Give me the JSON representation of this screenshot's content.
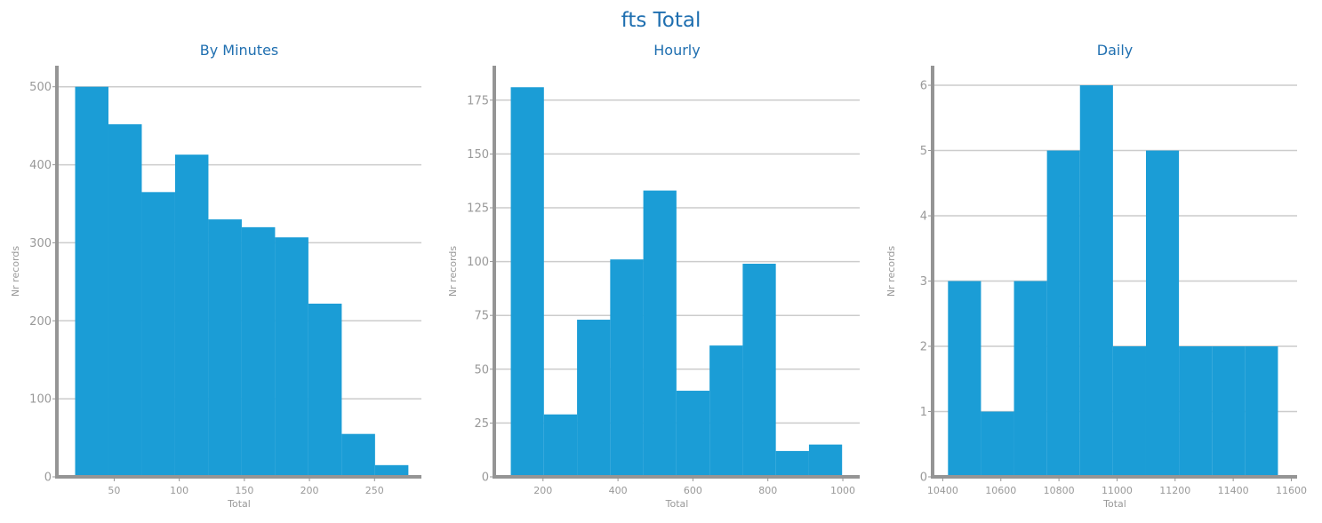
{
  "figure": {
    "suptitle": "fts Total"
  },
  "colors": {
    "bar": "#1b9dd6",
    "title": "#1f6fb0",
    "axis": "#959595",
    "grid": "#cccccc",
    "tick_text": "#999999"
  },
  "chart_data": [
    {
      "type": "bar",
      "title": "By Minutes",
      "xlabel": "Total",
      "ylabel": "Nr records",
      "xlim": [
        6,
        286
      ],
      "ylim": [
        0,
        527
      ],
      "xticks": [
        50,
        100,
        150,
        200,
        250
      ],
      "yticks": [
        0,
        100,
        200,
        300,
        400,
        500
      ],
      "grid": "horizontal",
      "bins": [
        {
          "x0": 20,
          "x1": 45.6,
          "value": 500
        },
        {
          "x0": 45.6,
          "x1": 71.2,
          "value": 452
        },
        {
          "x0": 71.2,
          "x1": 96.8,
          "value": 365
        },
        {
          "x0": 96.8,
          "x1": 122.4,
          "value": 413
        },
        {
          "x0": 122.4,
          "x1": 148.0,
          "value": 330
        },
        {
          "x0": 148.0,
          "x1": 173.6,
          "value": 320
        },
        {
          "x0": 173.6,
          "x1": 199.2,
          "value": 307
        },
        {
          "x0": 199.2,
          "x1": 224.8,
          "value": 222
        },
        {
          "x0": 224.8,
          "x1": 250.4,
          "value": 55
        },
        {
          "x0": 250.4,
          "x1": 276.0,
          "value": 15
        }
      ]
    },
    {
      "type": "bar",
      "title": "Hourly",
      "xlabel": "Total",
      "ylabel": "Nr records",
      "xlim": [
        70,
        1045
      ],
      "ylim": [
        0,
        191
      ],
      "xticks": [
        200,
        400,
        600,
        800,
        1000
      ],
      "yticks": [
        0,
        25,
        50,
        75,
        100,
        125,
        150,
        175
      ],
      "grid": "horizontal",
      "bins": [
        {
          "x0": 114,
          "x1": 202.4,
          "value": 181
        },
        {
          "x0": 202.4,
          "x1": 290.8,
          "value": 29
        },
        {
          "x0": 290.8,
          "x1": 379.2,
          "value": 73
        },
        {
          "x0": 379.2,
          "x1": 467.6,
          "value": 101
        },
        {
          "x0": 467.6,
          "x1": 556.0,
          "value": 133
        },
        {
          "x0": 556.0,
          "x1": 644.4,
          "value": 40
        },
        {
          "x0": 644.4,
          "x1": 732.8,
          "value": 61
        },
        {
          "x0": 732.8,
          "x1": 821.2,
          "value": 99
        },
        {
          "x0": 821.2,
          "x1": 909.6,
          "value": 12
        },
        {
          "x0": 909.6,
          "x1": 998.0,
          "value": 15
        }
      ]
    },
    {
      "type": "bar",
      "title": "Daily",
      "xlabel": "Total",
      "ylabel": "Nr records",
      "xlim": [
        10365,
        11620
      ],
      "ylim": [
        0,
        6.3
      ],
      "xticks": [
        10400,
        10600,
        10800,
        11000,
        11200,
        11400,
        11600
      ],
      "yticks": [
        0,
        1,
        2,
        3,
        4,
        5,
        6
      ],
      "grid": "horizontal",
      "bins": [
        {
          "x0": 10418,
          "x1": 10531.6,
          "value": 3
        },
        {
          "x0": 10531.6,
          "x1": 10645.2,
          "value": 1
        },
        {
          "x0": 10645.2,
          "x1": 10758.8,
          "value": 3
        },
        {
          "x0": 10758.8,
          "x1": 10872.4,
          "value": 5
        },
        {
          "x0": 10872.4,
          "x1": 10986.0,
          "value": 6
        },
        {
          "x0": 10986.0,
          "x1": 11099.6,
          "value": 2
        },
        {
          "x0": 11099.6,
          "x1": 11213.2,
          "value": 5
        },
        {
          "x0": 11213.2,
          "x1": 11326.8,
          "value": 2
        },
        {
          "x0": 11326.8,
          "x1": 11440.4,
          "value": 2
        },
        {
          "x0": 11440.4,
          "x1": 11554.0,
          "value": 2
        }
      ]
    }
  ]
}
